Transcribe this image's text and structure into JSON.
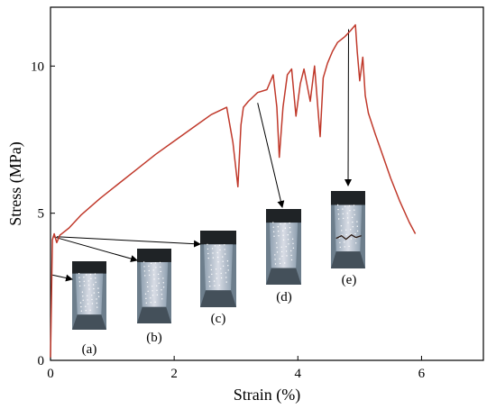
{
  "chart_data": {
    "type": "line",
    "xlabel": "Strain (%)",
    "ylabel": "Stress (MPa)",
    "xlim": [
      0,
      7
    ],
    "ylim": [
      0,
      12
    ],
    "x_ticks": [
      0,
      2,
      4,
      6
    ],
    "y_ticks": [
      0,
      5,
      10
    ],
    "grid": false,
    "series": [
      {
        "color": "#c0392b",
        "x": [
          0,
          0.03,
          0.06,
          0.1,
          0.15,
          0.3,
          0.5,
          0.8,
          1.1,
          1.4,
          1.7,
          2.0,
          2.3,
          2.6,
          2.85,
          2.95,
          3.03,
          3.08,
          3.12,
          3.2,
          3.35,
          3.5,
          3.6,
          3.66,
          3.7,
          3.76,
          3.83,
          3.9,
          3.97,
          4.04,
          4.1,
          4.2,
          4.27,
          4.36,
          4.41,
          4.48,
          4.56,
          4.64,
          4.76,
          4.85,
          4.93,
          4.96,
          5.0,
          5.05,
          5.09,
          5.14,
          5.25,
          5.35,
          5.5,
          5.65,
          5.8,
          5.9
        ],
        "y": [
          0.1,
          4.1,
          4.3,
          4.0,
          4.25,
          4.5,
          4.95,
          5.5,
          6.0,
          6.5,
          7.0,
          7.45,
          7.9,
          8.35,
          8.6,
          7.4,
          5.9,
          8.0,
          8.6,
          8.8,
          9.1,
          9.2,
          9.7,
          8.6,
          6.9,
          8.6,
          9.7,
          9.9,
          8.3,
          9.4,
          9.9,
          8.8,
          10.0,
          7.6,
          9.6,
          10.1,
          10.5,
          10.8,
          11.0,
          11.2,
          11.4,
          10.5,
          9.5,
          10.3,
          9.0,
          8.4,
          7.7,
          7.1,
          6.2,
          5.4,
          4.7,
          4.3
        ]
      }
    ],
    "annotations": [
      {
        "label": "(a)",
        "x": 0.03,
        "y": 2.9
      },
      {
        "label": "(b)",
        "x": 0.05,
        "y": 4.2
      },
      {
        "label": "(c)",
        "x": 0.1,
        "y": 4.2
      },
      {
        "label": "(d)",
        "x": 3.35,
        "y": 8.75
      },
      {
        "label": "(e)",
        "x": 4.82,
        "y": 11.25
      }
    ]
  }
}
